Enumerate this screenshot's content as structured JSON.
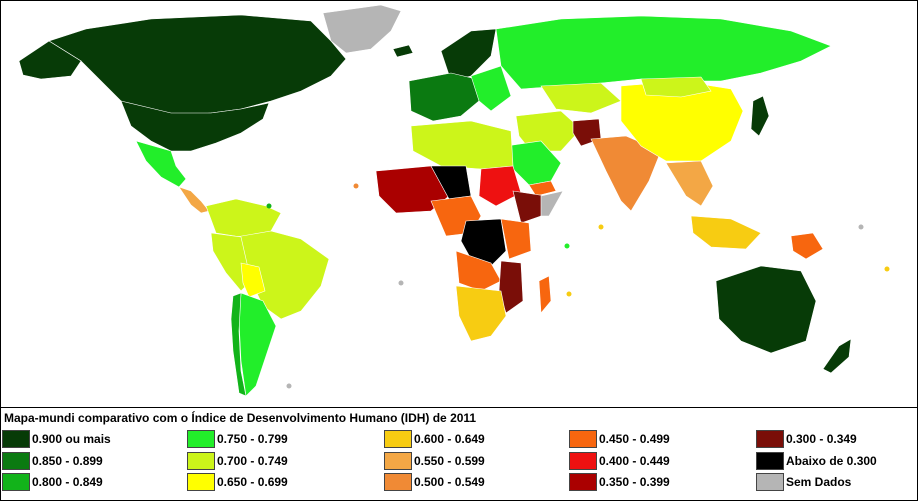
{
  "legend": {
    "title": "Mapa-mundi comparativo com o Índice de Desenvolvimento Humano (IDH) de 2011",
    "items": [
      {
        "label": "0.900 ou mais",
        "color": "#073b07"
      },
      {
        "label": "0.850 - 0.899",
        "color": "#0b7a11"
      },
      {
        "label": "0.800 - 0.849",
        "color": "#12b31a"
      },
      {
        "label": "0.750 - 0.799",
        "color": "#22ee2a"
      },
      {
        "label": "0.700 - 0.749",
        "color": "#ccf51a"
      },
      {
        "label": "0.650 - 0.699",
        "color": "#ffff00"
      },
      {
        "label": "0.600 - 0.649",
        "color": "#f7cc12"
      },
      {
        "label": "0.550 - 0.599",
        "color": "#f3a745"
      },
      {
        "label": "0.500 - 0.549",
        "color": "#f08a35"
      },
      {
        "label": "0.450 - 0.499",
        "color": "#f7660f"
      },
      {
        "label": "0.400 - 0.449",
        "color": "#ee1111"
      },
      {
        "label": "0.350 - 0.399",
        "color": "#aa0000"
      },
      {
        "label": "0.300 - 0.349",
        "color": "#7a0e08"
      },
      {
        "label": "Abaixo de 0.300",
        "color": "#000000"
      },
      {
        "label": "Sem Dados",
        "color": "#b5b5b5"
      }
    ]
  }
}
